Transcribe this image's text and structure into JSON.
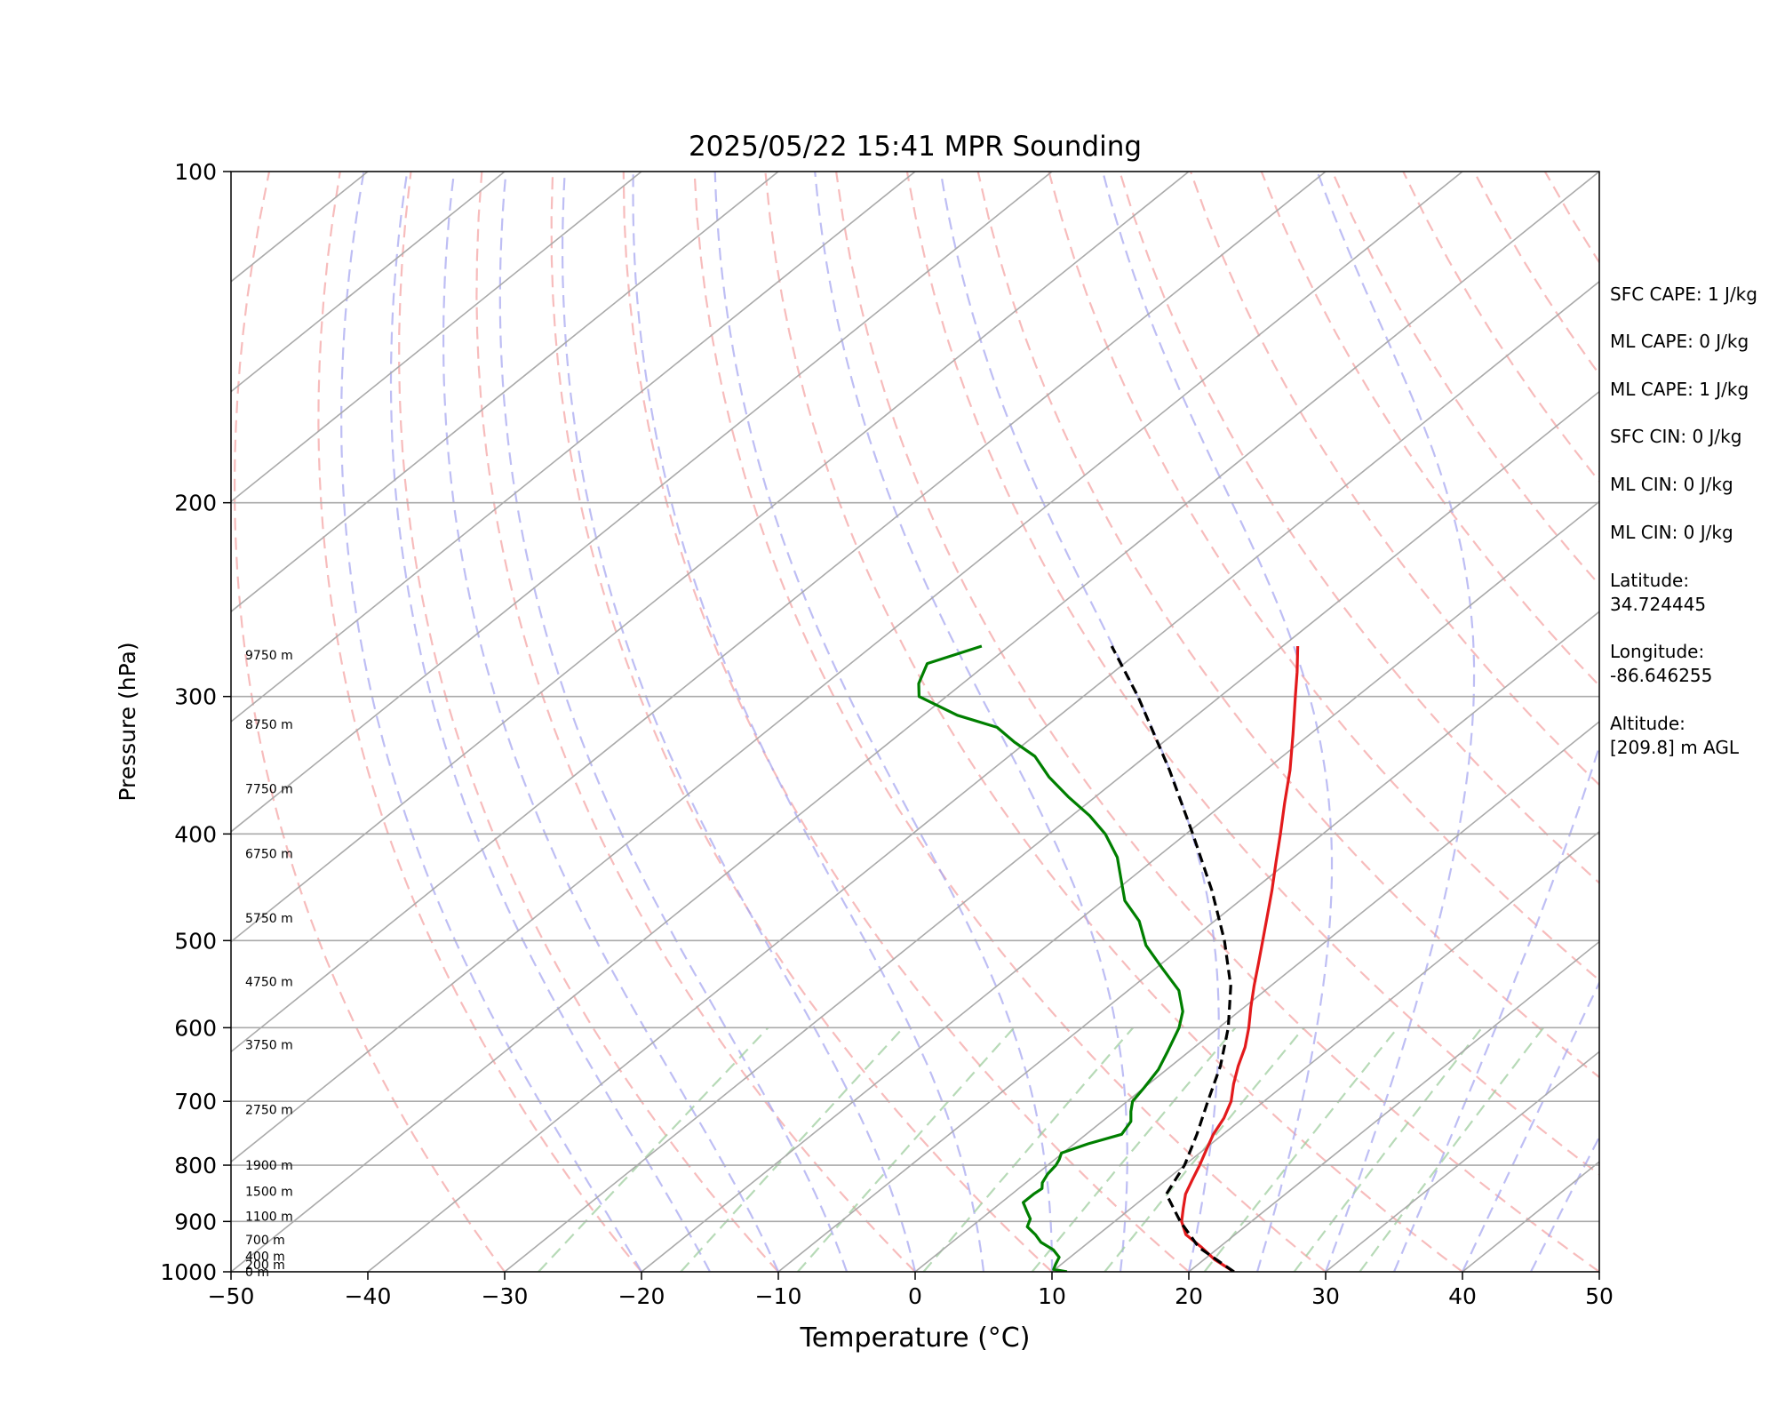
{
  "chart_data": {
    "type": "line",
    "title": "2025/05/22 15:41 MPR Sounding",
    "xlabel": "Temperature (°C)",
    "ylabel": "Pressure (hPa)",
    "xlim": [
      -50,
      50
    ],
    "ylim": [
      1000,
      100
    ],
    "y_scale": "log",
    "skew": "skew-T",
    "grid": true,
    "x_ticks": [
      "−50",
      "−40",
      "−30",
      "−20",
      "−10",
      "0",
      "10",
      "20",
      "30",
      "40",
      "50"
    ],
    "y_ticks": [
      "100",
      "200",
      "300",
      "400",
      "500",
      "600",
      "700",
      "800",
      "900",
      "1000"
    ],
    "height_labels": [
      "9750 m",
      "8750 m",
      "7750 m",
      "6750 m",
      "5750 m",
      "4750 m",
      "3750 m",
      "2750 m",
      "1900 m",
      "1500 m",
      "1100 m",
      "700 m",
      "400 m",
      "200 m",
      "0 m"
    ],
    "series": [
      {
        "color": "#e31a1c",
        "points": [
          [
            1000,
            23.3
          ],
          [
            975,
            20.8
          ],
          [
            950,
            18.7
          ],
          [
            925,
            16.4
          ],
          [
            900,
            14.9
          ],
          [
            875,
            13.8
          ],
          [
            850,
            12.7
          ],
          [
            825,
            11.9
          ],
          [
            800,
            11.1
          ],
          [
            775,
            10.2
          ],
          [
            750,
            9.3
          ],
          [
            725,
            8.6
          ],
          [
            700,
            7.6
          ],
          [
            675,
            6.2
          ],
          [
            650,
            4.9
          ],
          [
            625,
            3.7
          ],
          [
            600,
            2.2
          ],
          [
            575,
            0.5
          ],
          [
            550,
            -1.2
          ],
          [
            525,
            -2.9
          ],
          [
            500,
            -4.7
          ],
          [
            475,
            -6.6
          ],
          [
            450,
            -8.6
          ],
          [
            425,
            -10.8
          ],
          [
            400,
            -13.1
          ],
          [
            375,
            -15.6
          ],
          [
            350,
            -18.2
          ],
          [
            325,
            -21.2
          ],
          [
            300,
            -24.5
          ],
          [
            285,
            -26.6
          ],
          [
            270,
            -28.9
          ]
        ]
      },
      {
        "color": "#007f00",
        "points": [
          [
            1000,
            11.1
          ],
          [
            995,
            9.9
          ],
          [
            985,
            9.6
          ],
          [
            970,
            9.2
          ],
          [
            955,
            8.1
          ],
          [
            940,
            6.5
          ],
          [
            925,
            5.4
          ],
          [
            910,
            4.1
          ],
          [
            895,
            3.6
          ],
          [
            880,
            2.6
          ],
          [
            865,
            1.6
          ],
          [
            850,
            1.6
          ],
          [
            840,
            1.7
          ],
          [
            830,
            1.2
          ],
          [
            815,
            0.8
          ],
          [
            800,
            0.6
          ],
          [
            790,
            0.3
          ],
          [
            780,
            -0.1
          ],
          [
            765,
            1.0
          ],
          [
            750,
            2.6
          ],
          [
            730,
            2.1
          ],
          [
            715,
            1.2
          ],
          [
            700,
            0.4
          ],
          [
            680,
            0.0
          ],
          [
            655,
            -0.6
          ],
          [
            630,
            -1.6
          ],
          [
            600,
            -2.9
          ],
          [
            580,
            -4.1
          ],
          [
            555,
            -6.3
          ],
          [
            530,
            -9.5
          ],
          [
            505,
            -12.8
          ],
          [
            480,
            -15.5
          ],
          [
            460,
            -18.4
          ],
          [
            440,
            -20.6
          ],
          [
            420,
            -22.9
          ],
          [
            400,
            -25.9
          ],
          [
            385,
            -28.7
          ],
          [
            370,
            -32.0
          ],
          [
            355,
            -35.2
          ],
          [
            340,
            -38.1
          ],
          [
            330,
            -40.9
          ],
          [
            320,
            -43.5
          ],
          [
            312,
            -47.5
          ],
          [
            300,
            -52.0
          ],
          [
            292,
            -53.2
          ],
          [
            280,
            -54.4
          ],
          [
            270,
            -52.0
          ]
        ]
      },
      {
        "color": "#000000",
        "dashed": true,
        "points": [
          [
            1000,
            23.3
          ],
          [
            950,
            18.5
          ],
          [
            900,
            14.8
          ],
          [
            850,
            11.3
          ],
          [
            800,
            10.0
          ],
          [
            750,
            8.1
          ],
          [
            700,
            5.9
          ],
          [
            650,
            3.6
          ],
          [
            600,
            0.7
          ],
          [
            550,
            -2.9
          ],
          [
            500,
            -7.5
          ],
          [
            450,
            -13.0
          ],
          [
            400,
            -19.5
          ],
          [
            350,
            -27.0
          ],
          [
            300,
            -36.0
          ],
          [
            270,
            -42.5
          ]
        ]
      }
    ],
    "annotations": [
      "SFC CAPE: 1 J/kg",
      "ML CAPE: 0 J/kg",
      "ML CAPE: 1 J/kg",
      "SFC CIN: 0 J/kg",
      "ML CIN: 0 J/kg",
      "ML CIN: 0 J/kg",
      "Latitude:",
      "34.724445",
      "Longitude:",
      "-86.646255",
      "Altitude:",
      "[209.8] m AGL"
    ]
  }
}
